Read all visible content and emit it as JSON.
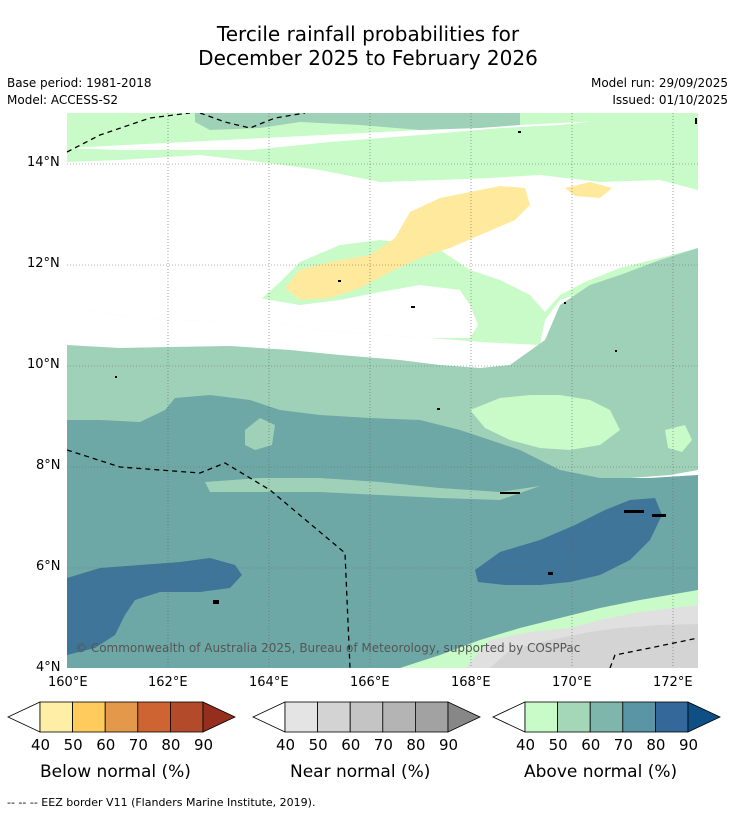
{
  "title_line1": "Tercile rainfall probabilities for",
  "title_line2": "December 2025 to February 2026",
  "meta": {
    "base_period": "Base period: 1981-2018",
    "model": "Model: ACCESS-S2",
    "model_run": "Model run: 29/09/2025",
    "issued": "Issued: 01/10/2025"
  },
  "map": {
    "lat_labels": [
      "14°N",
      "12°N",
      "10°N",
      "8°N",
      "6°N",
      "4°N"
    ],
    "lon_labels": [
      "160°E",
      "162°E",
      "164°E",
      "166°E",
      "168°E",
      "170°E",
      "172°E"
    ],
    "copyright": "© Commonwealth of Australia 2025, Bureau of Meteorology, supported by COSPPac",
    "colors": {
      "below_50": "#fee99c",
      "near_50": "#e0e0e0",
      "near_60": "#d4d4d4",
      "above_40": "#c9fbc8",
      "above_50": "#9fd1b8",
      "above_60": "#6ea8a6",
      "above_70": "#5e96a4",
      "above_80": "#3e7598"
    }
  },
  "legends": [
    {
      "title": "Below normal (%)",
      "ticks": [
        "40",
        "50",
        "60",
        "70",
        "80",
        "90"
      ],
      "colors": [
        "#ffeea6",
        "#fecb5c",
        "#e3984a",
        "#ce6432",
        "#b34a2a",
        "#952e1d"
      ]
    },
    {
      "title": "Near normal (%)",
      "ticks": [
        "40",
        "50",
        "60",
        "70",
        "80",
        "90"
      ],
      "colors": [
        "#e4e4e4",
        "#d3d3d3",
        "#c4c4c4",
        "#b4b4b4",
        "#a2a2a2",
        "#878787"
      ]
    },
    {
      "title": "Above normal (%)",
      "ticks": [
        "40",
        "50",
        "60",
        "70",
        "80",
        "90"
      ],
      "colors": [
        "#c9fbc8",
        "#a3d7b8",
        "#7fb6ab",
        "#5a95a6",
        "#34689a",
        "#0e4f86"
      ]
    }
  ],
  "footnote": "--  --  -- EEZ border V11 (Flanders Marine Institute, 2019)."
}
